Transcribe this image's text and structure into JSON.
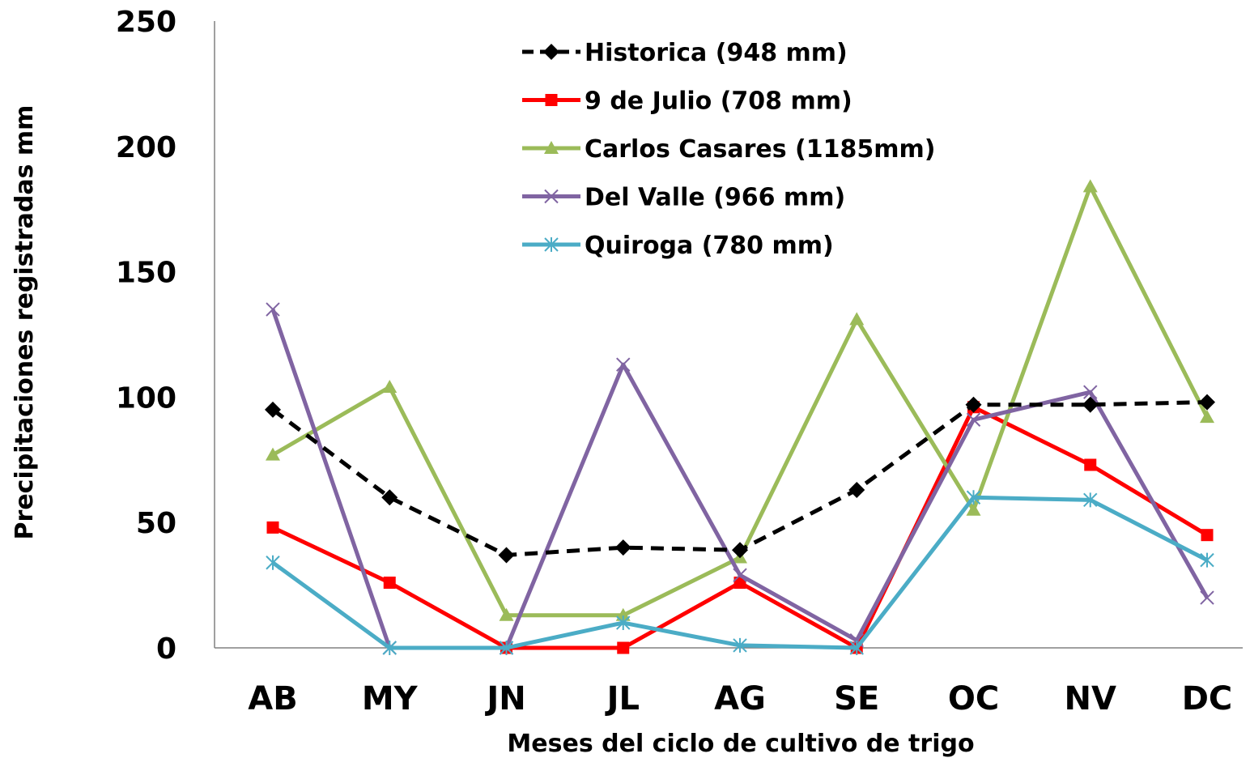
{
  "chart_data": {
    "type": "line",
    "title": "",
    "xlabel": "Meses del ciclo de cultivo de trigo",
    "ylabel": "Precipitaciones registradas mm",
    "categories": [
      "AB",
      "MY",
      "JN",
      "JL",
      "AG",
      "SE",
      "OC",
      "NV",
      "DC"
    ],
    "ylim": [
      0,
      250
    ],
    "yticks": [
      "0",
      "50",
      "100",
      "150",
      "200",
      "250"
    ],
    "grid": false,
    "legend_position": "top-center",
    "series": [
      {
        "name": "Historica (948 mm)",
        "color": "#000000",
        "dash": true,
        "marker": "diamond",
        "values": [
          95,
          60,
          37,
          40,
          39,
          63,
          97,
          97,
          98
        ]
      },
      {
        "name": "9 de Julio (708 mm)",
        "color": "#ff0000",
        "dash": false,
        "marker": "square",
        "values": [
          48,
          26,
          0,
          0,
          26,
          0,
          96,
          73,
          45
        ]
      },
      {
        "name": "Carlos Casares (1185mm)",
        "color": "#9bbb59",
        "dash": false,
        "marker": "triangle",
        "values": [
          77,
          104,
          13,
          13,
          36,
          131,
          55,
          184,
          92
        ]
      },
      {
        "name": "Del Valle (966 mm)",
        "color": "#8064a2",
        "dash": false,
        "marker": "x",
        "values": [
          135,
          0,
          0,
          113,
          29,
          3,
          91,
          102,
          20
        ]
      },
      {
        "name": "Quiroga (780 mm)",
        "color": "#4bacc6",
        "dash": false,
        "marker": "star",
        "values": [
          34,
          0,
          0,
          10,
          1,
          0,
          60,
          59,
          35
        ]
      }
    ]
  }
}
